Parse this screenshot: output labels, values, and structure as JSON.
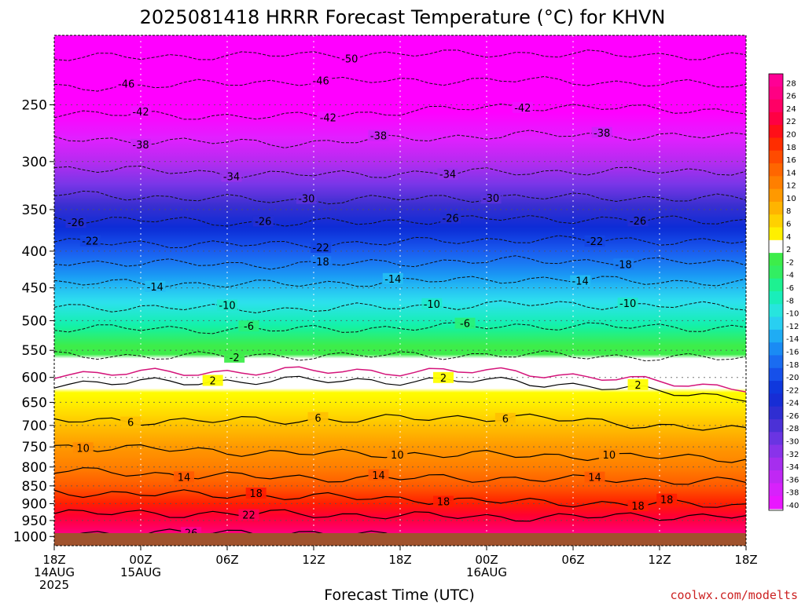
{
  "title": "2025081418 HRRR Forecast Temperature (°C) for KHVN",
  "credit": "coolwx.com/modelts",
  "chart_data": {
    "type": "heatmap",
    "title": "2025081418 HRRR Forecast Temperature (°C) for KHVN",
    "xlabel": "Forecast Time (UTC)",
    "ylabel": "",
    "y_scale": "pressure (hPa), decreasing upward",
    "y_range": [
      1030,
      200
    ],
    "y_ticks": [
      250,
      300,
      350,
      400,
      450,
      500,
      550,
      600,
      650,
      700,
      750,
      800,
      850,
      900,
      950,
      1000
    ],
    "x_ticks": [
      {
        "hour": 0,
        "line1": "18Z",
        "line2": "14AUG",
        "line3": "2025"
      },
      {
        "hour": 6,
        "line1": "00Z",
        "line2": "15AUG",
        "line3": ""
      },
      {
        "hour": 12,
        "line1": "06Z",
        "line2": "",
        "line3": ""
      },
      {
        "hour": 18,
        "line1": "12Z",
        "line2": "",
        "line3": ""
      },
      {
        "hour": 24,
        "line1": "18Z",
        "line2": "",
        "line3": ""
      },
      {
        "hour": 30,
        "line1": "00Z",
        "line2": "16AUG",
        "line3": ""
      },
      {
        "hour": 36,
        "line1": "06Z",
        "line2": "",
        "line3": ""
      },
      {
        "hour": 42,
        "line1": "12Z",
        "line2": "",
        "line3": ""
      },
      {
        "hour": 48,
        "line1": "18Z",
        "line2": "",
        "line3": ""
      }
    ],
    "colorbar": {
      "labels": [
        28,
        26,
        24,
        22,
        20,
        18,
        16,
        14,
        12,
        10,
        8,
        6,
        4,
        2,
        -2,
        -4,
        -6,
        -8,
        -10,
        -12,
        -14,
        -16,
        -18,
        -20,
        -22,
        -24,
        -26,
        -28,
        -30,
        -32,
        -34,
        -36,
        -38,
        -40
      ]
    },
    "temperature_profile": [
      {
        "p": 1000,
        "t": 26
      },
      {
        "p": 975,
        "t": 23
      },
      {
        "p": 950,
        "t": 21
      },
      {
        "p": 900,
        "t": 18
      },
      {
        "p": 850,
        "t": 14
      },
      {
        "p": 800,
        "t": 11
      },
      {
        "p": 750,
        "t": 9
      },
      {
        "p": 700,
        "t": 6
      },
      {
        "p": 650,
        "t": 3
      },
      {
        "p": 600,
        "t": 1
      },
      {
        "p": 550,
        "t": -3
      },
      {
        "p": 500,
        "t": -9
      },
      {
        "p": 450,
        "t": -14
      },
      {
        "p": 400,
        "t": -20
      },
      {
        "p": 350,
        "t": -27
      },
      {
        "p": 300,
        "t": -36
      },
      {
        "p": 250,
        "t": -45
      },
      {
        "p": 200,
        "t": -52
      }
    ],
    "contours": [
      {
        "value": -50,
        "p": [
          215,
          213,
          212,
          214
        ],
        "labels": [
          {
            "hour": 20.5,
            "text": "-50"
          }
        ]
      },
      {
        "value": -46,
        "p": [
          237,
          232,
          231,
          235
        ],
        "labels": [
          {
            "hour": 5,
            "text": "-46"
          },
          {
            "hour": 18.5,
            "text": "-46"
          }
        ]
      },
      {
        "value": -42,
        "p": [
          257,
          260,
          251,
          255
        ],
        "labels": [
          {
            "hour": 6,
            "text": "-42"
          },
          {
            "hour": 19,
            "text": "-42"
          },
          {
            "hour": 32.5,
            "text": "-42"
          }
        ]
      },
      {
        "value": -38,
        "p": [
          279,
          283,
          275,
          277
        ],
        "labels": [
          {
            "hour": 6,
            "text": "-38"
          },
          {
            "hour": 22.5,
            "text": "-38"
          },
          {
            "hour": 38,
            "text": "-38"
          }
        ]
      },
      {
        "value": -34,
        "p": [
          306,
          313,
          310,
          309
        ],
        "labels": [
          {
            "hour": 12.3,
            "text": "-34"
          },
          {
            "hour": 27.3,
            "text": "-34"
          }
        ]
      },
      {
        "value": -30,
        "p": [
          333,
          340,
          336,
          338
        ],
        "labels": [
          {
            "hour": 17.5,
            "text": "-30"
          },
          {
            "hour": 30.3,
            "text": "-30"
          }
        ]
      },
      {
        "value": -26,
        "p": [
          360,
          366,
          360,
          363
        ],
        "labels": [
          {
            "hour": 1.5,
            "text": "-26"
          },
          {
            "hour": 14.5,
            "text": "-26"
          },
          {
            "hour": 27.5,
            "text": "-26"
          },
          {
            "hour": 40.5,
            "text": "-26"
          }
        ]
      },
      {
        "value": -22,
        "p": [
          389,
          392,
          385,
          388
        ],
        "labels": [
          {
            "hour": 2.5,
            "text": "-22"
          },
          {
            "hour": 18.5,
            "text": "-22"
          },
          {
            "hour": 37.5,
            "text": "-22"
          }
        ]
      },
      {
        "value": -18,
        "p": [
          414,
          418,
          412,
          415
        ],
        "labels": [
          {
            "hour": 18.5,
            "text": "-18"
          },
          {
            "hour": 39.5,
            "text": "-18"
          }
        ]
      },
      {
        "value": -14,
        "p": [
          443,
          445,
          437,
          443
        ],
        "labels": [
          {
            "hour": 7,
            "text": "-14"
          },
          {
            "hour": 23.5,
            "text": "-14"
          },
          {
            "hour": 36.5,
            "text": "-14"
          }
        ]
      },
      {
        "value": -10,
        "p": [
          478,
          482,
          474,
          478
        ],
        "labels": [
          {
            "hour": 12,
            "text": "-10"
          },
          {
            "hour": 26.2,
            "text": "-10"
          },
          {
            "hour": 39.8,
            "text": "-10"
          }
        ]
      },
      {
        "value": -6,
        "p": [
          512,
          515,
          508,
          512
        ],
        "labels": [
          {
            "hour": 13.5,
            "text": "-6"
          },
          {
            "hour": 28.5,
            "text": "-6"
          }
        ]
      },
      {
        "value": -2,
        "p": [
          560,
          560,
          558,
          565
        ],
        "labels": [
          {
            "hour": 12.5,
            "text": "-2"
          }
        ]
      },
      {
        "value": 2,
        "p": [
          612,
          606,
          607,
          640
        ],
        "labels": [
          {
            "hour": 11,
            "text": "2"
          },
          {
            "hour": 27,
            "text": "2"
          },
          {
            "hour": 40.5,
            "text": "2"
          }
        ]
      },
      {
        "value": 6,
        "p": [
          690,
          689,
          681,
          712
        ],
        "labels": [
          {
            "hour": 5.3,
            "text": "6"
          },
          {
            "hour": 18.3,
            "text": "6"
          },
          {
            "hour": 31.3,
            "text": "6"
          }
        ]
      },
      {
        "value": 10,
        "p": [
          748,
          765,
          770,
          778
        ],
        "labels": [
          {
            "hour": 2,
            "text": "10"
          },
          {
            "hour": 23.8,
            "text": "10"
          },
          {
            "hour": 38.5,
            "text": "10"
          }
        ]
      },
      {
        "value": 14,
        "p": [
          810,
          828,
          830,
          838
        ],
        "labels": [
          {
            "hour": 9,
            "text": "14"
          },
          {
            "hour": 22.5,
            "text": "14"
          },
          {
            "hour": 37.5,
            "text": "14"
          }
        ]
      },
      {
        "value": 18,
        "p": [
          868,
          878,
          895,
          905
        ],
        "labels": [
          {
            "hour": 14,
            "text": "18"
          },
          {
            "hour": 27,
            "text": "18"
          },
          {
            "hour": 42.5,
            "text": "18"
          },
          {
            "hour": 40.5,
            "text": "18"
          }
        ]
      },
      {
        "value": 22,
        "p": [
          928,
          930,
          940,
          935
        ],
        "labels": [
          {
            "hour": 13.5,
            "text": "22"
          }
        ]
      },
      {
        "value": 26,
        "p": [
          990,
          988,
          1010,
          1010
        ],
        "labels": [
          {
            "hour": 9.5,
            "text": "26"
          }
        ]
      }
    ]
  }
}
